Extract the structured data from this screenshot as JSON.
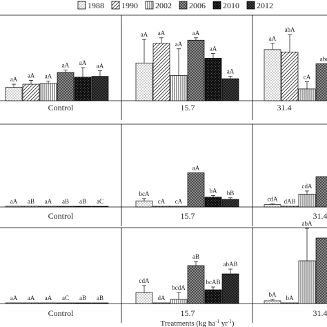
{
  "chart_data": {
    "type": "bar",
    "legend": {
      "placement": "top",
      "entries": [
        "1988",
        "1990",
        "2002",
        "2006",
        "2010",
        "2012"
      ]
    },
    "xlabel": "Treatments (kg ha",
    "xlabel_sup1": "-1",
    "xlabel_mid": " yr",
    "xlabel_sup2": "-1",
    "xlabel_end": ")",
    "categories": [
      "Control",
      "15.7",
      "31.4"
    ],
    "colors": {
      "dots": "#dcdcdc",
      "checker": "#6a6a6a",
      "dark_checker": "#151515"
    },
    "panels": [
      {
        "ylim": [
          0,
          100
        ],
        "values": [
          [
            17,
            21,
            22,
            36,
            30,
            31
          ],
          [
            48,
            73,
            32,
            77,
            54,
            28
          ],
          [
            65,
            62,
            15,
            47
          ]
        ],
        "errors": [
          [
            4,
            5,
            3,
            3,
            12,
            7
          ],
          [
            30,
            7,
            34,
            3,
            6,
            3
          ],
          [
            8,
            22,
            9,
            0
          ]
        ],
        "labels": [
          [
            "aA",
            "aA",
            "aA",
            "aA",
            "aA",
            "aA"
          ],
          [
            "aA",
            "aA",
            "aA",
            "aA",
            "aA",
            "aA"
          ],
          [
            "aA",
            "abA",
            "cA",
            "abc"
          ]
        ]
      },
      {
        "ylim": [
          0,
          100
        ],
        "values": [
          [
            1,
            1,
            0,
            0,
            0,
            0
          ],
          [
            8,
            0,
            0,
            45,
            13,
            10
          ],
          [
            3,
            1,
            17,
            40
          ]
        ],
        "errors": [
          [
            0,
            0,
            0,
            0,
            0,
            0
          ],
          [
            3,
            0,
            0,
            0,
            2,
            2
          ],
          [
            1,
            0,
            4,
            0
          ]
        ],
        "labels": [
          [
            "aA",
            "aB",
            "aA",
            "aB",
            "aB",
            "aC"
          ],
          [
            "bcA",
            "cA",
            "cA",
            "aA",
            "bA",
            "bB"
          ],
          [
            "cdA",
            "dAB",
            "cdA",
            ""
          ]
        ]
      },
      {
        "ylim": [
          0,
          100
        ],
        "values": [
          [
            0,
            0,
            0,
            0,
            0,
            0
          ],
          [
            16,
            1,
            6,
            55,
            20,
            43
          ],
          [
            4,
            0,
            62,
            95
          ]
        ],
        "errors": [
          [
            0,
            0,
            0,
            0,
            0,
            0
          ],
          [
            10,
            0,
            10,
            6,
            4,
            7
          ],
          [
            2,
            0,
            47,
            0
          ]
        ],
        "labels": [
          [
            "aA",
            "aA",
            "aA",
            "aC",
            "aB",
            "aB"
          ],
          [
            "cdA",
            "dA",
            "bcdA",
            "aB",
            "bcAB",
            "abAB"
          ],
          [
            "bA",
            "bA",
            "abA",
            ""
          ]
        ]
      }
    ]
  }
}
